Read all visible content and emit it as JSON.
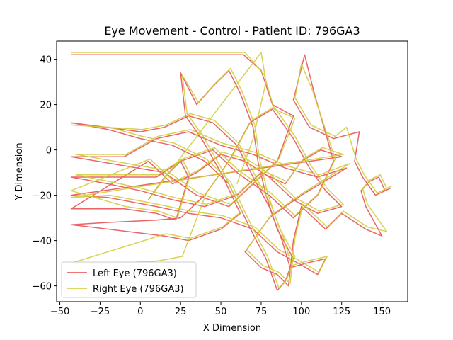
{
  "chart_data": {
    "type": "line",
    "title": "Eye Movement - Control - Patient ID: 796GA3",
    "xlabel": "X Dimension",
    "ylabel": "Y Dimension",
    "xlim": [
      -52,
      166
    ],
    "ylim": [
      -67,
      48
    ],
    "xticks": [
      -50,
      -25,
      0,
      25,
      50,
      75,
      100,
      125,
      150
    ],
    "yticks": [
      -60,
      -40,
      -20,
      0,
      20,
      40
    ],
    "xtick_labels": [
      "−50",
      "−25",
      "0",
      "25",
      "50",
      "75",
      "100",
      "125",
      "150"
    ],
    "ytick_labels": [
      "−60",
      "−40",
      "−20",
      "0",
      "20",
      "40"
    ],
    "grid": false,
    "legend_position": "lower-left",
    "series": [
      {
        "name": "Left Eye (796GA3)",
        "color": "#e8484b",
        "points": [
          [
            -43,
            42
          ],
          [
            64,
            42
          ],
          [
            75,
            35
          ],
          [
            82,
            20
          ],
          [
            95,
            15
          ],
          [
            85,
            -5
          ],
          [
            70,
            -15
          ],
          [
            55,
            -25
          ],
          [
            35,
            -20
          ],
          [
            15,
            -10
          ],
          [
            -43,
            -3
          ],
          [
            -10,
            -3
          ],
          [
            10,
            5
          ],
          [
            30,
            8
          ],
          [
            50,
            2
          ],
          [
            70,
            -2
          ],
          [
            90,
            -8
          ],
          [
            110,
            -12
          ],
          [
            128,
            -8
          ],
          [
            100,
            -20
          ],
          [
            80,
            -30
          ],
          [
            65,
            -45
          ],
          [
            75,
            -52
          ],
          [
            85,
            -55
          ],
          [
            92,
            -60
          ],
          [
            95,
            -40
          ],
          [
            100,
            -25
          ],
          [
            115,
            -35
          ],
          [
            125,
            -28
          ],
          [
            140,
            -35
          ],
          [
            150,
            -38
          ],
          [
            140,
            -25
          ],
          [
            137,
            -18
          ],
          [
            142,
            -14
          ],
          [
            148,
            -12
          ],
          [
            152,
            -18
          ],
          [
            155,
            -17
          ],
          [
            146,
            -20
          ],
          [
            138,
            -12
          ],
          [
            133,
            -5
          ],
          [
            136,
            8
          ],
          [
            120,
            5
          ],
          [
            105,
            10
          ],
          [
            95,
            22
          ],
          [
            102,
            42
          ],
          [
            108,
            25
          ],
          [
            120,
            -5
          ],
          [
            110,
            -20
          ],
          [
            95,
            -30
          ],
          [
            80,
            -20
          ],
          [
            60,
            -10
          ],
          [
            45,
            0
          ],
          [
            25,
            -5
          ],
          [
            10,
            -12
          ],
          [
            -43,
            -12
          ],
          [
            -20,
            -15
          ],
          [
            0,
            -18
          ],
          [
            20,
            -22
          ],
          [
            40,
            -25
          ],
          [
            60,
            -20
          ],
          [
            75,
            -10
          ],
          [
            90,
            -15
          ],
          [
            100,
            -5
          ],
          [
            112,
            0
          ],
          [
            125,
            -3
          ],
          [
            -43,
            -20
          ],
          [
            -20,
            -21
          ],
          [
            10,
            -25
          ],
          [
            30,
            -28
          ],
          [
            50,
            -30
          ],
          [
            70,
            -35
          ],
          [
            85,
            -45
          ],
          [
            98,
            -50
          ],
          [
            110,
            -55
          ],
          [
            115,
            -48
          ],
          [
            103,
            -50
          ],
          [
            93,
            -52
          ],
          [
            88,
            -40
          ],
          [
            80,
            -25
          ],
          [
            70,
            -12
          ],
          [
            60,
            2
          ],
          [
            45,
            12
          ],
          [
            30,
            15
          ],
          [
            15,
            10
          ],
          [
            0,
            8
          ],
          [
            -43,
            12
          ],
          [
            -20,
            9
          ],
          [
            0,
            5
          ],
          [
            20,
            2
          ],
          [
            40,
            -5
          ],
          [
            55,
            -15
          ],
          [
            65,
            -30
          ],
          [
            72,
            -40
          ],
          [
            78,
            -48
          ],
          [
            85,
            -62
          ],
          [
            90,
            -58
          ],
          [
            95,
            -48
          ],
          [
            85,
            -35
          ],
          [
            78,
            -20
          ],
          [
            73,
            -5
          ],
          [
            70,
            10
          ],
          [
            62,
            25
          ],
          [
            55,
            35
          ],
          [
            45,
            28
          ],
          [
            35,
            20
          ],
          [
            25,
            34
          ],
          [
            28,
            15
          ],
          [
            38,
            5
          ],
          [
            50,
            -10
          ],
          [
            62,
            -28
          ],
          [
            50,
            -35
          ],
          [
            30,
            -40
          ],
          [
            15,
            -38
          ],
          [
            -43,
            -33
          ],
          [
            -20,
            -32
          ],
          [
            10,
            -31
          ],
          [
            25,
            -30
          ],
          [
            40,
            -20
          ],
          [
            55,
            -5
          ],
          [
            68,
            12
          ],
          [
            82,
            18
          ],
          [
            95,
            5
          ],
          [
            105,
            -8
          ],
          [
            115,
            -18
          ],
          [
            125,
            -25
          ],
          [
            110,
            -28
          ],
          [
            95,
            -22
          ],
          [
            80,
            -12
          ],
          [
            65,
            -5
          ],
          [
            50,
            -2
          ],
          [
            35,
            -10
          ],
          [
            20,
            -15
          ],
          [
            5,
            -5
          ],
          [
            -43,
            -26
          ],
          [
            -10,
            -26
          ],
          [
            10,
            -28
          ],
          [
            22,
            -31
          ],
          [
            30,
            -12
          ],
          [
            25,
            -5
          ],
          [
            15,
            -12
          ],
          [
            5,
            -22
          ]
        ]
      },
      {
        "name": "Right Eye (796GA3)",
        "color": "#cfca34",
        "points": [
          [
            -43,
            43
          ],
          [
            65,
            43
          ],
          [
            77,
            33
          ],
          [
            83,
            18
          ],
          [
            96,
            14
          ],
          [
            86,
            -4
          ],
          [
            71,
            -14
          ],
          [
            56,
            -24
          ],
          [
            36,
            -19
          ],
          [
            16,
            -9
          ],
          [
            -40,
            -2
          ],
          [
            -9,
            -2
          ],
          [
            11,
            6
          ],
          [
            31,
            9
          ],
          [
            51,
            3
          ],
          [
            71,
            -1
          ],
          [
            91,
            -7
          ],
          [
            111,
            -11
          ],
          [
            130,
            -6
          ],
          [
            101,
            -19
          ],
          [
            81,
            -29
          ],
          [
            66,
            -44
          ],
          [
            76,
            -51
          ],
          [
            86,
            -54
          ],
          [
            93,
            -59
          ],
          [
            96,
            -39
          ],
          [
            101,
            -24
          ],
          [
            116,
            -34
          ],
          [
            126,
            -27
          ],
          [
            141,
            -34
          ],
          [
            153,
            -36
          ],
          [
            141,
            -24
          ],
          [
            138,
            -17
          ],
          [
            143,
            -13
          ],
          [
            149,
            -11
          ],
          [
            153,
            -17
          ],
          [
            156,
            -16
          ],
          [
            147,
            -19
          ],
          [
            139,
            -11
          ],
          [
            134,
            -4
          ],
          [
            128,
            10
          ],
          [
            121,
            6
          ],
          [
            106,
            11
          ],
          [
            96,
            23
          ],
          [
            100,
            38
          ],
          [
            107,
            26
          ],
          [
            121,
            -4
          ],
          [
            111,
            -19
          ],
          [
            96,
            -29
          ],
          [
            81,
            -19
          ],
          [
            61,
            -9
          ],
          [
            46,
            1
          ],
          [
            26,
            -4
          ],
          [
            11,
            -11
          ],
          [
            -40,
            -11
          ],
          [
            -19,
            -14
          ],
          [
            1,
            -17
          ],
          [
            21,
            -21
          ],
          [
            41,
            -24
          ],
          [
            61,
            -19
          ],
          [
            76,
            -9
          ],
          [
            91,
            -14
          ],
          [
            101,
            -4
          ],
          [
            113,
            1
          ],
          [
            126,
            -2
          ],
          [
            -43,
            -21
          ],
          [
            -19,
            -20
          ],
          [
            11,
            -24
          ],
          [
            31,
            -27
          ],
          [
            51,
            -29
          ],
          [
            71,
            -34
          ],
          [
            86,
            -44
          ],
          [
            99,
            -49
          ],
          [
            111,
            -54
          ],
          [
            116,
            -47
          ],
          [
            104,
            -49
          ],
          [
            94,
            -51
          ],
          [
            89,
            -39
          ],
          [
            81,
            -24
          ],
          [
            71,
            -11
          ],
          [
            61,
            3
          ],
          [
            46,
            13
          ],
          [
            31,
            16
          ],
          [
            16,
            11
          ],
          [
            1,
            9
          ],
          [
            -43,
            11
          ],
          [
            -19,
            10
          ],
          [
            1,
            6
          ],
          [
            21,
            3
          ],
          [
            41,
            -4
          ],
          [
            56,
            -14
          ],
          [
            66,
            -29
          ],
          [
            73,
            -39
          ],
          [
            79,
            -47
          ],
          [
            86,
            -61
          ],
          [
            91,
            -57
          ],
          [
            96,
            -47
          ],
          [
            86,
            -34
          ],
          [
            79,
            -19
          ],
          [
            74,
            -4
          ],
          [
            71,
            11
          ],
          [
            63,
            26
          ],
          [
            56,
            36
          ],
          [
            46,
            29
          ],
          [
            36,
            21
          ],
          [
            26,
            33
          ],
          [
            29,
            16
          ],
          [
            39,
            6
          ],
          [
            51,
            -9
          ],
          [
            63,
            -27
          ],
          [
            51,
            -34
          ],
          [
            31,
            -39
          ],
          [
            16,
            -37
          ],
          [
            -43,
            -50
          ],
          [
            -15,
            -50
          ],
          [
            11,
            -49
          ],
          [
            26,
            -47
          ],
          [
            41,
            -19
          ],
          [
            56,
            -4
          ],
          [
            69,
            13
          ],
          [
            83,
            19
          ],
          [
            96,
            6
          ],
          [
            106,
            -7
          ],
          [
            116,
            -17
          ],
          [
            126,
            -24
          ],
          [
            111,
            -27
          ],
          [
            96,
            -21
          ],
          [
            81,
            -11
          ],
          [
            66,
            -4
          ],
          [
            51,
            -1
          ],
          [
            36,
            -9
          ],
          [
            21,
            -14
          ],
          [
            6,
            -4
          ],
          [
            -43,
            -18
          ],
          [
            -9,
            -25
          ],
          [
            11,
            -27
          ],
          [
            23,
            -30
          ],
          [
            31,
            -11
          ],
          [
            26,
            -4
          ],
          [
            16,
            -11
          ],
          [
            6,
            -21
          ],
          [
            75,
            43
          ],
          [
            78,
            30
          ],
          [
            70,
            5
          ],
          [
            60,
            -15
          ]
        ]
      }
    ]
  }
}
